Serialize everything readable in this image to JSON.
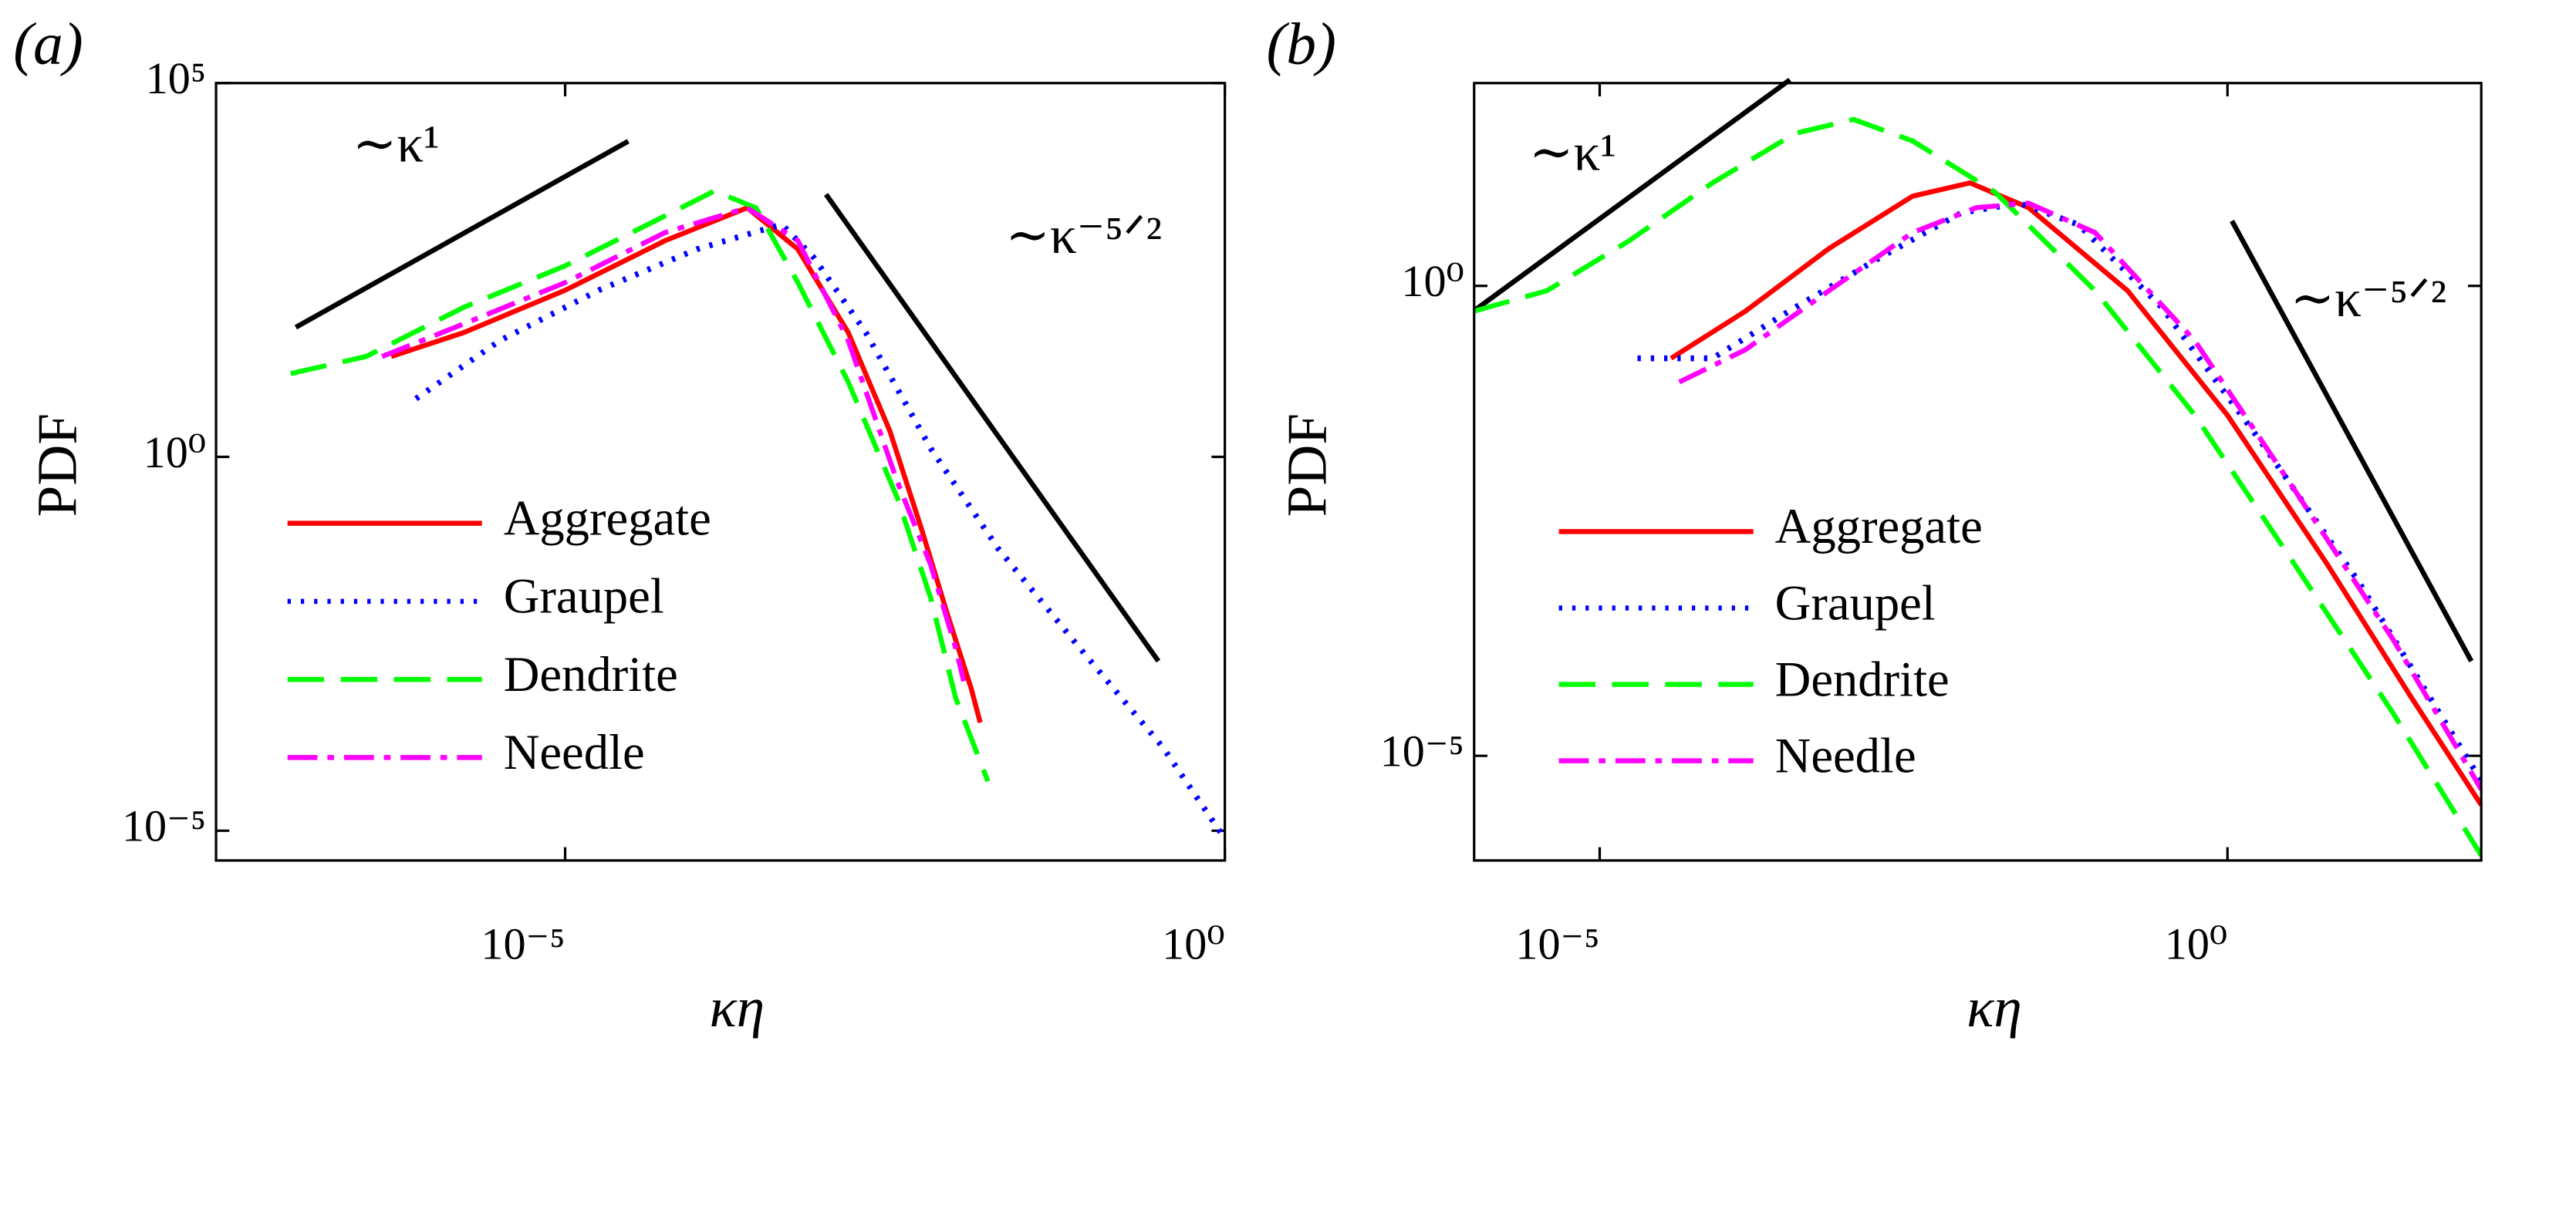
{
  "chart_data": [
    {
      "type": "line",
      "panel_label": "(a)",
      "xlabel": "κη",
      "ylabel": "PDF",
      "xscale": "log",
      "yscale": "log",
      "xlim": [
        2.26e-08,
        1
      ],
      "ylim": [
        4e-06,
        100000
      ],
      "xticks": [
        {
          "value": 1e-05,
          "label": "10⁻⁵"
        },
        {
          "value": 1,
          "label": "10⁰"
        }
      ],
      "yticks": [
        {
          "value": 100000,
          "label": "10⁵"
        },
        {
          "value": 1,
          "label": "10⁰"
        },
        {
          "value": 1e-05,
          "label": "10⁻⁵"
        }
      ],
      "annotations": [
        "∼κ¹",
        "∼κ⁻⁵ᐟ²"
      ],
      "legend": "lower left",
      "series": [
        {
          "name": "Aggregate",
          "color": "#ff0000",
          "style": "solid",
          "x": [
            4.8e-07,
            1.7e-06,
            1e-05,
            5.7e-05,
            0.00024,
            0.00058,
            0.0014,
            0.0029,
            0.0051,
            0.0079,
            0.012,
            0.014
          ],
          "values": [
            22,
            46,
            170,
            780,
            2150,
            600,
            46,
            2.2,
            0.1,
            0.0078,
            0.00078,
            0.00028
          ]
        },
        {
          "name": "Graupel",
          "color": "#0000ff",
          "style": "dotted",
          "x": [
            7.4e-07,
            3.2e-06,
            1.8e-05,
            0.0001,
            0.00044,
            0.00077,
            0.0019,
            0.0059,
            0.019,
            0.079,
            0.34,
            1
          ],
          "values": [
            6.0,
            36,
            170,
            600,
            1290,
            460,
            46,
            1.3,
            0.06,
            0.0028,
            0.00013,
            7.8e-06
          ]
        },
        {
          "name": "Dendrite",
          "color": "#00ff00",
          "style": "dashed",
          "x": [
            8.3e-08,
            3.1e-07,
            1.7e-06,
            1e-05,
            5.7e-05,
            0.000135,
            0.00028,
            0.00058,
            0.0014,
            0.0033,
            0.0059,
            0.0091,
            0.016
          ],
          "values": [
            13,
            22,
            100,
            360,
            1670,
            3600,
            2150,
            215,
            10,
            0.28,
            0.013,
            0.0006,
            4.6e-05
          ]
        },
        {
          "name": "Needle",
          "color": "#ff00ff",
          "style": "dashdot",
          "x": [
            4.1e-07,
            1.7e-06,
            1e-05,
            5.7e-05,
            0.00024,
            0.00058,
            0.0014,
            0.0033,
            0.0059,
            0.0091,
            0.0105
          ],
          "values": [
            22,
            60,
            215,
            1000,
            2150,
            780,
            36,
            0.46,
            0.036,
            0.0028,
            0.001
          ]
        }
      ]
    },
    {
      "type": "line",
      "panel_label": "(b)",
      "xlabel": "κη",
      "ylabel": "PDF",
      "xscale": "log",
      "yscale": "log",
      "xlim": [
        1e-06,
        105
      ],
      "ylim": [
        7.7e-07,
        144
      ],
      "xticks": [
        {
          "value": 1e-05,
          "label": "10⁻⁵"
        },
        {
          "value": 1,
          "label": "10⁰"
        }
      ],
      "yticks": [
        {
          "value": 1,
          "label": "10⁰"
        },
        {
          "value": 1e-05,
          "label": "10⁻⁵"
        }
      ],
      "annotations": [
        "∼κ¹",
        "∼κ⁻⁵ᐟ²"
      ],
      "legend": "lower left",
      "series": [
        {
          "name": "Aggregate",
          "color": "#ff0000",
          "style": "solid",
          "x": [
            3.7e-05,
            0.000145,
            0.00067,
            0.0031,
            0.0089,
            0.026,
            0.16,
            1,
            6.2,
            29,
            105
          ],
          "values": [
            0.17,
            0.54,
            2.5,
            9,
            12.5,
            6.8,
            0.89,
            0.042,
            0.0011,
            4.2e-05,
            3e-06
          ]
        },
        {
          "name": "Graupel",
          "color": "#0000ff",
          "style": "dotted",
          "x": [
            2e-05,
            7.9e-05,
            0.00036,
            0.0017,
            0.0076,
            0.022,
            0.065,
            0.3,
            1.8,
            11,
            105
          ],
          "values": [
            0.17,
            0.17,
            0.59,
            2.0,
            6.0,
            7.6,
            4.5,
            0.59,
            0.023,
            0.00072,
            5.4e-06
          ]
        },
        {
          "name": "Dendrite",
          "color": "#00ff00",
          "style": "dashed",
          "x": [
            1e-06,
            3.8e-06,
            1.7e-05,
            7.9e-05,
            0.00036,
            0.00105,
            0.0031,
            0.014,
            0.088,
            0.55,
            3.4,
            21,
            105
          ],
          "values": [
            0.54,
            0.89,
            3.0,
            12.5,
            42,
            59,
            35,
            10,
            0.89,
            0.042,
            0.0011,
            2.8e-05,
            8.7e-07
          ]
        },
        {
          "name": "Needle",
          "color": "#ff00ff",
          "style": "dashdot",
          "x": [
            4.3e-05,
            0.000145,
            0.00067,
            0.0031,
            0.01,
            0.026,
            0.088,
            0.55,
            3.4,
            21,
            105
          ],
          "values": [
            0.095,
            0.21,
            0.89,
            3.7,
            6.8,
            7.6,
            3.7,
            0.26,
            0.0068,
            0.00017,
            4.4e-06
          ]
        }
      ]
    }
  ]
}
